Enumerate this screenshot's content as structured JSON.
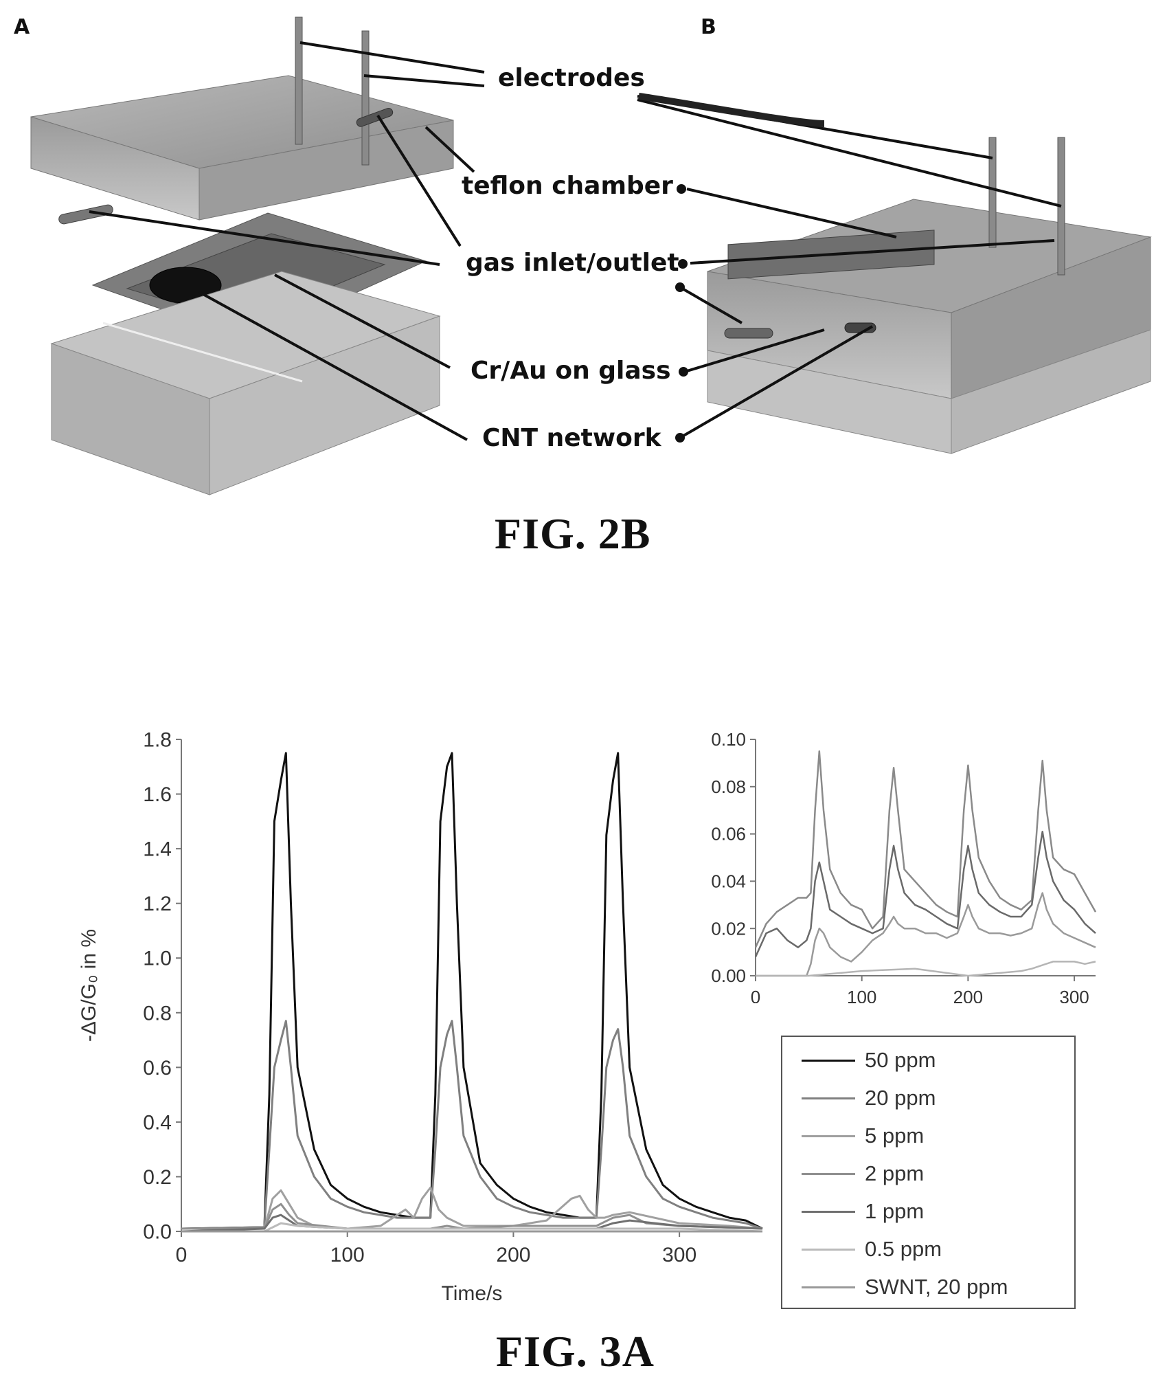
{
  "figure_2b": {
    "panel_a_label": "A",
    "panel_b_label": "B",
    "callouts": {
      "electrodes": "electrodes",
      "teflon_chamber": "teflon chamber",
      "gas_inlet_outlet": "gas inlet/outlet",
      "cr_au_on_glass": "Cr/Au on glass",
      "cnt_network": "CNT network"
    },
    "caption": "FIG. 2B"
  },
  "figure_3a": {
    "caption": "FIG. 3A",
    "legend": [
      "50 ppm",
      "20 ppm",
      "5 ppm",
      "2 ppm",
      "1 ppm",
      "0.5 ppm",
      "SWNT, 20 ppm"
    ]
  },
  "chart_data": [
    {
      "type": "line",
      "title": "",
      "xlabel": "Time/s",
      "ylabel": "-ΔG/G₀ in %",
      "xlim": [
        0,
        350
      ],
      "ylim": [
        0,
        1.8
      ],
      "x_ticks": [
        "0",
        "100",
        "200",
        "300"
      ],
      "y_ticks": [
        "0.0",
        "0.2",
        "0.4",
        "0.6",
        "0.8",
        "1.0",
        "1.2",
        "1.4",
        "1.6",
        "1.8"
      ],
      "legend_position": "right",
      "series": [
        {
          "name": "50 ppm",
          "color": "#111111",
          "x": [
            0,
            50,
            53,
            56,
            60,
            63,
            66,
            70,
            80,
            90,
            100,
            110,
            120,
            130,
            140,
            150,
            153,
            156,
            160,
            163,
            166,
            170,
            180,
            190,
            200,
            210,
            220,
            230,
            240,
            250,
            253,
            256,
            260,
            263,
            266,
            270,
            280,
            290,
            300,
            310,
            320,
            330,
            340,
            350
          ],
          "y": [
            0.01,
            0.015,
            0.5,
            1.5,
            1.65,
            1.75,
            1.2,
            0.6,
            0.3,
            0.17,
            0.12,
            0.09,
            0.07,
            0.06,
            0.05,
            0.05,
            0.5,
            1.5,
            1.7,
            1.75,
            1.2,
            0.6,
            0.25,
            0.17,
            0.12,
            0.09,
            0.07,
            0.06,
            0.05,
            0.05,
            0.5,
            1.45,
            1.65,
            1.75,
            1.2,
            0.6,
            0.3,
            0.17,
            0.12,
            0.09,
            0.07,
            0.05,
            0.04,
            0.01
          ]
        },
        {
          "name": "20 ppm",
          "color": "#808080",
          "x": [
            0,
            50,
            53,
            56,
            60,
            63,
            66,
            70,
            80,
            90,
            100,
            110,
            120,
            130,
            140,
            150,
            153,
            156,
            160,
            163,
            166,
            170,
            180,
            190,
            200,
            210,
            220,
            230,
            240,
            250,
            253,
            256,
            260,
            263,
            266,
            270,
            280,
            290,
            300,
            310,
            320,
            330,
            340,
            350
          ],
          "y": [
            0.01,
            0.015,
            0.3,
            0.6,
            0.7,
            0.77,
            0.6,
            0.35,
            0.2,
            0.12,
            0.09,
            0.07,
            0.06,
            0.05,
            0.05,
            0.05,
            0.3,
            0.6,
            0.72,
            0.77,
            0.6,
            0.35,
            0.2,
            0.12,
            0.09,
            0.07,
            0.06,
            0.05,
            0.05,
            0.05,
            0.3,
            0.6,
            0.7,
            0.74,
            0.6,
            0.35,
            0.2,
            0.12,
            0.09,
            0.07,
            0.05,
            0.04,
            0.03,
            0.01
          ]
        },
        {
          "name": "5 ppm",
          "color": "#a0a0a0",
          "x": [
            0,
            50,
            55,
            60,
            65,
            70,
            80,
            100,
            120,
            130,
            135,
            140,
            145,
            150,
            155,
            160,
            170,
            200,
            220,
            235,
            240,
            245,
            250,
            255,
            260,
            270,
            300,
            330,
            350
          ],
          "y": [
            0.01,
            0.01,
            0.12,
            0.15,
            0.1,
            0.05,
            0.02,
            0.01,
            0.02,
            0.06,
            0.08,
            0.05,
            0.12,
            0.16,
            0.08,
            0.05,
            0.02,
            0.02,
            0.04,
            0.12,
            0.13,
            0.08,
            0.05,
            0.05,
            0.06,
            0.07,
            0.03,
            0.02,
            0.01
          ]
        },
        {
          "name": "2 ppm",
          "color": "#909090",
          "x": [
            0,
            50,
            55,
            60,
            65,
            70,
            100,
            150,
            160,
            170,
            200,
            250,
            260,
            270,
            280,
            300,
            350
          ],
          "y": [
            0.01,
            0.01,
            0.08,
            0.1,
            0.06,
            0.03,
            0.01,
            0.01,
            0.02,
            0.01,
            0.02,
            0.02,
            0.05,
            0.06,
            0.03,
            0.02,
            0.01
          ]
        },
        {
          "name": "1 ppm",
          "color": "#707070",
          "x": [
            0,
            50,
            55,
            60,
            65,
            70,
            100,
            150,
            200,
            250,
            260,
            270,
            300,
            350
          ],
          "y": [
            0.0,
            0.01,
            0.05,
            0.06,
            0.04,
            0.02,
            0.01,
            0.01,
            0.01,
            0.01,
            0.03,
            0.04,
            0.02,
            0.01
          ]
        },
        {
          "name": "0.5 ppm",
          "color": "#bbbbbb",
          "x": [
            0,
            50,
            60,
            70,
            100,
            150,
            200,
            250,
            300,
            350
          ],
          "y": [
            0.0,
            0.0,
            0.03,
            0.02,
            0.01,
            0.01,
            0.01,
            0.01,
            0.01,
            0.0
          ]
        },
        {
          "name": "SWNT, 20 ppm",
          "color": "#999999",
          "x": [
            0,
            50,
            100,
            150,
            200,
            250,
            300,
            350
          ],
          "y": [
            0.0,
            0.0,
            0.0,
            0.0,
            0.0,
            0.0,
            0.0,
            0.0
          ]
        }
      ]
    },
    {
      "type": "line",
      "title": "",
      "xlabel": "",
      "ylabel": "",
      "xlim": [
        0,
        320
      ],
      "ylim": [
        0,
        0.1
      ],
      "x_ticks": [
        "0",
        "100",
        "200",
        "300"
      ],
      "y_ticks": [
        "0.00",
        "0.02",
        "0.04",
        "0.06",
        "0.08",
        "0.10"
      ],
      "series": [
        {
          "color": "#8a8a8a",
          "x": [
            0,
            10,
            20,
            30,
            40,
            48,
            52,
            56,
            60,
            64,
            70,
            80,
            90,
            100,
            110,
            120,
            126,
            130,
            134,
            140,
            150,
            160,
            170,
            180,
            190,
            196,
            200,
            204,
            210,
            220,
            230,
            240,
            250,
            260,
            266,
            270,
            274,
            280,
            290,
            300,
            310,
            320
          ],
          "y": [
            0.012,
            0.022,
            0.027,
            0.03,
            0.033,
            0.033,
            0.035,
            0.07,
            0.095,
            0.07,
            0.045,
            0.035,
            0.03,
            0.028,
            0.02,
            0.025,
            0.07,
            0.088,
            0.07,
            0.045,
            0.04,
            0.035,
            0.03,
            0.027,
            0.025,
            0.07,
            0.089,
            0.07,
            0.05,
            0.04,
            0.033,
            0.03,
            0.028,
            0.032,
            0.07,
            0.091,
            0.07,
            0.05,
            0.045,
            0.043,
            0.035,
            0.027
          ]
        },
        {
          "color": "#6a6a6a",
          "x": [
            0,
            10,
            20,
            30,
            40,
            48,
            52,
            56,
            60,
            64,
            70,
            80,
            90,
            100,
            110,
            120,
            126,
            130,
            134,
            140,
            150,
            160,
            170,
            180,
            190,
            196,
            200,
            204,
            210,
            220,
            230,
            240,
            250,
            260,
            266,
            270,
            274,
            280,
            290,
            300,
            310,
            320
          ],
          "y": [
            0.008,
            0.018,
            0.02,
            0.015,
            0.012,
            0.015,
            0.02,
            0.04,
            0.048,
            0.04,
            0.028,
            0.025,
            0.022,
            0.02,
            0.018,
            0.02,
            0.045,
            0.055,
            0.045,
            0.035,
            0.03,
            0.028,
            0.025,
            0.022,
            0.02,
            0.045,
            0.055,
            0.045,
            0.035,
            0.03,
            0.027,
            0.025,
            0.025,
            0.03,
            0.05,
            0.061,
            0.05,
            0.04,
            0.032,
            0.028,
            0.022,
            0.018
          ]
        },
        {
          "color": "#9a9a9a",
          "x": [
            0,
            10,
            20,
            30,
            40,
            48,
            52,
            56,
            60,
            64,
            70,
            80,
            90,
            100,
            110,
            120,
            126,
            130,
            134,
            140,
            150,
            160,
            170,
            180,
            190,
            196,
            200,
            204,
            210,
            220,
            230,
            240,
            250,
            260,
            266,
            270,
            274,
            280,
            290,
            300,
            310,
            320
          ],
          "y": [
            0.0,
            0.0,
            0.0,
            0.0,
            0.0,
            0.0,
            0.005,
            0.015,
            0.02,
            0.018,
            0.012,
            0.008,
            0.006,
            0.01,
            0.015,
            0.018,
            0.022,
            0.025,
            0.022,
            0.02,
            0.02,
            0.018,
            0.018,
            0.016,
            0.018,
            0.025,
            0.03,
            0.025,
            0.02,
            0.018,
            0.018,
            0.017,
            0.018,
            0.02,
            0.03,
            0.035,
            0.028,
            0.022,
            0.018,
            0.016,
            0.014,
            0.012
          ]
        },
        {
          "color": "#b5b5b5",
          "x": [
            0,
            50,
            100,
            150,
            200,
            250,
            260,
            280,
            300,
            310,
            320
          ],
          "y": [
            0.0,
            0.0,
            0.002,
            0.003,
            0.0,
            0.002,
            0.003,
            0.006,
            0.006,
            0.005,
            0.006
          ]
        }
      ]
    }
  ]
}
